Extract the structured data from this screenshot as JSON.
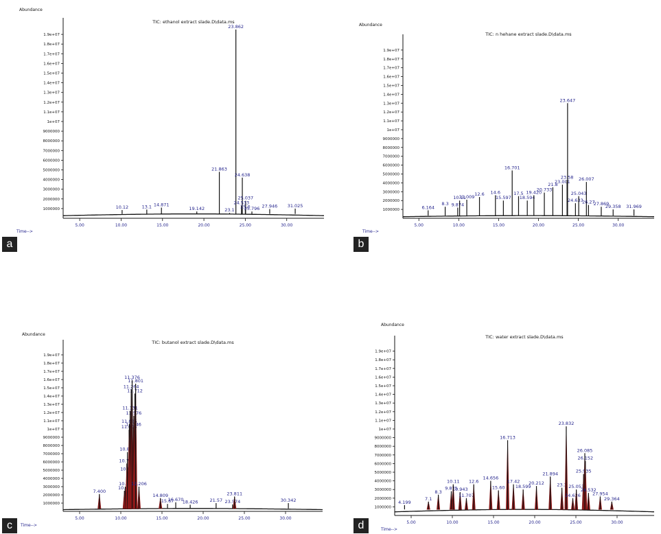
{
  "colors": {
    "trace": "#111111",
    "fill": "#8b1a1a",
    "label": "#23238c",
    "axis": "#111111"
  },
  "panels": [
    {
      "id": "a",
      "letter": "a",
      "title": "TIC: ethanol extract slade.D\\data.ms",
      "abundance_label": "Abundance",
      "time_label": "Time-->"
    },
    {
      "id": "b",
      "letter": "b",
      "title": "TIC: n hehane extract slade.D\\data.ms",
      "abundance_label": "Abundance",
      "time_label": "Time-->"
    },
    {
      "id": "c",
      "letter": "c",
      "title": "TIC: butanol extract slade.D\\data.ms",
      "abundance_label": "Abundance",
      "time_label": "Time-->"
    },
    {
      "id": "d",
      "letter": "d",
      "title": "TIC: water extract slade.D\\data.ms",
      "abundance_label": "Abundance",
      "time_label": "Time-->"
    }
  ],
  "chart_data": [
    {
      "type": "line",
      "title": "TIC: ethanol extract slade.D\\data.ms",
      "xlabel": "Time-->",
      "ylabel": "Abundance",
      "xlim": [
        3,
        34.5
      ],
      "ylim": [
        0,
        20000000
      ],
      "baseline": 450000,
      "xticks": [
        "5.00",
        "10.00",
        "15.00",
        "20.00",
        "25.00",
        "30.00"
      ],
      "yticks": [
        "1000000",
        "2000000",
        "3000000",
        "4000000",
        "5000000",
        "6000000",
        "7000000",
        "8000000",
        "9000000",
        "1e+07",
        "1.1e+07",
        "1.2e+07",
        "1.3e+07",
        "1.4e+07",
        "1.5e+07",
        "1.6e+07",
        "1.7e+07",
        "1.8e+07",
        "1.9e+07"
      ],
      "peaks": [
        {
          "x": 10.12,
          "y": 850000,
          "label": "10.12"
        },
        {
          "x": 13.1,
          "y": 900000,
          "label": "13.1"
        },
        {
          "x": 14.871,
          "y": 1100000,
          "label": "14.871"
        },
        {
          "x": 19.142,
          "y": 700000,
          "label": "19.142"
        },
        {
          "x": 21.863,
          "y": 4800000,
          "label": "21.863"
        },
        {
          "x": 23.1,
          "y": 550000,
          "label": "23.1"
        },
        {
          "x": 23.862,
          "y": 19500000,
          "label": "23.862"
        },
        {
          "x": 24.638,
          "y": 4200000,
          "label": "24.638"
        },
        {
          "x": 25.037,
          "y": 1800000,
          "label": "25.037"
        },
        {
          "x": 24.533,
          "y": 1300000,
          "label": "24.533"
        },
        {
          "x": 25.0,
          "y": 900000,
          "label": "25.0"
        },
        {
          "x": 25.796,
          "y": 700000,
          "label": "25.796"
        },
        {
          "x": 27.946,
          "y": 950000,
          "label": "27.946"
        },
        {
          "x": 31.025,
          "y": 1000000,
          "label": "31.025"
        }
      ]
    },
    {
      "type": "line",
      "title": "TIC: n hehane extract slade.D\\data.ms",
      "xlabel": "Time-->",
      "ylabel": "Abundance",
      "xlim": [
        3,
        34.5
      ],
      "ylim": [
        0,
        20000000
      ],
      "baseline": 300000,
      "xticks": [
        "5.00",
        "10.00",
        "15.00",
        "20.00",
        "25.00",
        "30.00"
      ],
      "yticks": [
        "1000000",
        "2000000",
        "3000000",
        "4000000",
        "5000000",
        "6000000",
        "7000000",
        "8000000",
        "9000000",
        "1e+07",
        "1.1e+07",
        "1.2e+07",
        "1.3e+07",
        "1.4e+07",
        "1.5e+07",
        "1.6e+07",
        "1.7e+07",
        "1.8e+07",
        "1.9e+07"
      ],
      "peaks": [
        {
          "x": 6.164,
          "y": 900000,
          "label": "6.164"
        },
        {
          "x": 8.3,
          "y": 1300000,
          "label": "8.3"
        },
        {
          "x": 9.874,
          "y": 1200000,
          "label": "9.874"
        },
        {
          "x": 10.11,
          "y": 2000000,
          "label": "10.11"
        },
        {
          "x": 11.009,
          "y": 2100000,
          "label": "11.009"
        },
        {
          "x": 12.6,
          "y": 2400000,
          "label": "12.6"
        },
        {
          "x": 14.6,
          "y": 2600000,
          "label": "14.6"
        },
        {
          "x": 15.597,
          "y": 2000000,
          "label": "15.597"
        },
        {
          "x": 16.701,
          "y": 5400000,
          "label": "16.701"
        },
        {
          "x": 17.5,
          "y": 2500000,
          "label": "17.5"
        },
        {
          "x": 18.594,
          "y": 2000000,
          "label": "18.594"
        },
        {
          "x": 19.42,
          "y": 2600000,
          "label": "19.420"
        },
        {
          "x": 20.733,
          "y": 2900000,
          "label": "20.733"
        },
        {
          "x": 21.8,
          "y": 3500000,
          "label": "21.8"
        },
        {
          "x": 23.001,
          "y": 3800000,
          "label": "23.001"
        },
        {
          "x": 23.647,
          "y": 13000000,
          "label": "23.647"
        },
        {
          "x": 23.58,
          "y": 4300000,
          "label": "23.58"
        },
        {
          "x": 24.633,
          "y": 1700000,
          "label": "24.633"
        },
        {
          "x": 25.043,
          "y": 2500000,
          "label": "25.043"
        },
        {
          "x": 26.007,
          "y": 4100000,
          "label": "26.007"
        },
        {
          "x": 26.27,
          "y": 1500000,
          "label": "26.27"
        },
        {
          "x": 27.869,
          "y": 1300000,
          "label": "27.869"
        },
        {
          "x": 29.358,
          "y": 1000000,
          "label": "29.358"
        },
        {
          "x": 31.969,
          "y": 1000000,
          "label": "31.969"
        }
      ]
    },
    {
      "type": "line",
      "title": "TIC: butanol extract slade.D\\data.ms",
      "xlabel": "Time-->",
      "ylabel": "Abundance",
      "xlim": [
        3,
        34.5
      ],
      "ylim": [
        0,
        20000000
      ],
      "baseline": 350000,
      "xticks": [
        "5.00",
        "10.00",
        "15.00",
        "20.00",
        "25.00",
        "30.00"
      ],
      "yticks": [
        "1000000",
        "2000000",
        "3000000",
        "4000000",
        "5000000",
        "6000000",
        "7000000",
        "8000000",
        "9000000",
        "1e+07",
        "1.1e+07",
        "1.2e+07",
        "1.3e+07",
        "1.4e+07",
        "1.5e+07",
        "1.6e+07",
        "1.7e+07",
        "1.8e+07",
        "1.9e+07"
      ],
      "peaks": [
        {
          "x": 7.4,
          "y": 2100000,
          "label": "7.400"
        },
        {
          "x": 10.44,
          "y": 2500000,
          "label": "10.44"
        },
        {
          "x": 10.54,
          "y": 3000000,
          "label": "10.54"
        },
        {
          "x": 10.887,
          "y": 4800000,
          "label": "10.887"
        },
        {
          "x": 10.733,
          "y": 5800000,
          "label": "10.733"
        },
        {
          "x": 10.802,
          "y": 7200000,
          "label": "10.802"
        },
        {
          "x": 11.006,
          "y": 9900000,
          "label": "11.006"
        },
        {
          "x": 11.546,
          "y": 10200000,
          "label": "11.546"
        },
        {
          "x": 11.035,
          "y": 10600000,
          "label": "11.035"
        },
        {
          "x": 11.576,
          "y": 11600000,
          "label": "11.576"
        },
        {
          "x": 11.131,
          "y": 12200000,
          "label": "11.131"
        },
        {
          "x": 11.712,
          "y": 14300000,
          "label": "11.712"
        },
        {
          "x": 11.264,
          "y": 14800000,
          "label": "11.264"
        },
        {
          "x": 11.801,
          "y": 15500000,
          "label": "11.801"
        },
        {
          "x": 11.376,
          "y": 15900000,
          "label": "11.376"
        },
        {
          "x": 12.206,
          "y": 3000000,
          "label": "12.206"
        },
        {
          "x": 14.809,
          "y": 1600000,
          "label": "14.809"
        },
        {
          "x": 15.67,
          "y": 900000,
          "label": "15.67"
        },
        {
          "x": 16.67,
          "y": 1100000,
          "label": "16.670"
        },
        {
          "x": 18.426,
          "y": 800000,
          "label": "18.426"
        },
        {
          "x": 21.57,
          "y": 1000000,
          "label": "21.57"
        },
        {
          "x": 23.574,
          "y": 850000,
          "label": "23.574"
        },
        {
          "x": 23.811,
          "y": 1800000,
          "label": "23.811"
        },
        {
          "x": 30.342,
          "y": 1000000,
          "label": "30.342"
        }
      ]
    },
    {
      "type": "line",
      "title": "TIC: water extract slade.D\\data.ms",
      "xlabel": "Time-->",
      "ylabel": "Abundance",
      "xlim": [
        3,
        34.5
      ],
      "ylim": [
        0,
        20000000
      ],
      "baseline": 700000,
      "xticks": [
        "5.00",
        "10.00",
        "15.00",
        "20.00",
        "25.00",
        "30.00"
      ],
      "yticks": [
        "1000000",
        "2000000",
        "3000000",
        "4000000",
        "5000000",
        "6000000",
        "7000000",
        "8000000",
        "9000000",
        "1e+07",
        "1.1e+07",
        "1.2e+07",
        "1.3e+07",
        "1.4e+07",
        "1.5e+07",
        "1.6e+07",
        "1.7e+07",
        "1.8e+07",
        "1.9e+07"
      ],
      "peaks": [
        {
          "x": 4.199,
          "y": 1200000,
          "label": "4.199"
        },
        {
          "x": 7.1,
          "y": 1600000,
          "label": "7.1"
        },
        {
          "x": 8.3,
          "y": 2400000,
          "label": "8.3"
        },
        {
          "x": 9.875,
          "y": 2800000,
          "label": "9.875"
        },
        {
          "x": 10.943,
          "y": 2700000,
          "label": "10.943"
        },
        {
          "x": 10.11,
          "y": 3600000,
          "label": "10.11"
        },
        {
          "x": 11.707,
          "y": 2000000,
          "label": "11.707"
        },
        {
          "x": 12.6,
          "y": 3600000,
          "label": "12.6"
        },
        {
          "x": 14.656,
          "y": 4000000,
          "label": "14.656"
        },
        {
          "x": 15.6,
          "y": 2900000,
          "label": "15.60"
        },
        {
          "x": 16.713,
          "y": 8700000,
          "label": "16.713"
        },
        {
          "x": 17.42,
          "y": 3600000,
          "label": "17.42"
        },
        {
          "x": 18.599,
          "y": 3000000,
          "label": "18.599"
        },
        {
          "x": 20.212,
          "y": 3400000,
          "label": "20.212"
        },
        {
          "x": 21.894,
          "y": 4500000,
          "label": "21.894"
        },
        {
          "x": 23.3,
          "y": 3200000,
          "label": "23.3"
        },
        {
          "x": 23.832,
          "y": 10300000,
          "label": "23.832"
        },
        {
          "x": 24.626,
          "y": 2000000,
          "label": "24.626"
        },
        {
          "x": 25.053,
          "y": 3000000,
          "label": "25.053"
        },
        {
          "x": 25.935,
          "y": 4800000,
          "label": "25.935"
        },
        {
          "x": 26.152,
          "y": 6300000,
          "label": "26.152"
        },
        {
          "x": 26.085,
          "y": 7200000,
          "label": "26.085"
        },
        {
          "x": 26.532,
          "y": 2600000,
          "label": "26.532"
        },
        {
          "x": 27.954,
          "y": 2200000,
          "label": "27.954"
        },
        {
          "x": 29.364,
          "y": 1600000,
          "label": "29.364"
        }
      ]
    }
  ]
}
